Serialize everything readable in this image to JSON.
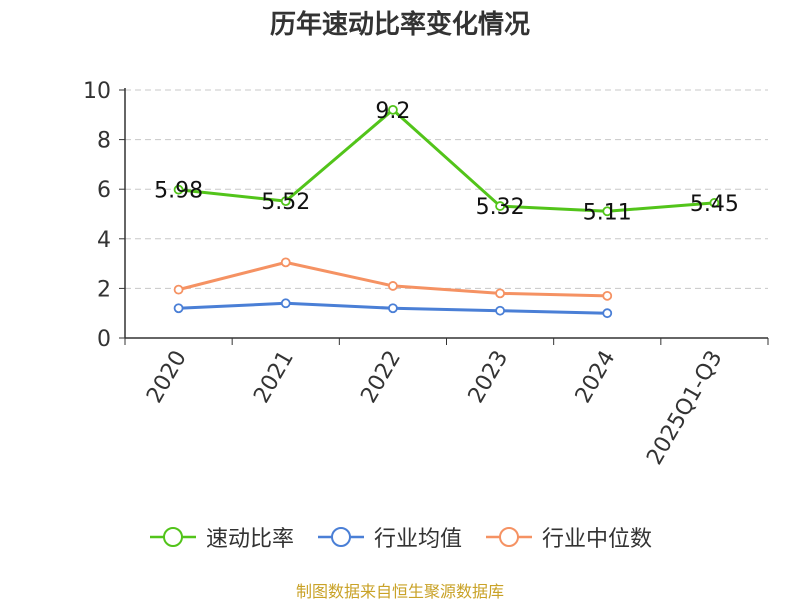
{
  "title": "历年速动比率变化情况",
  "source": "制图数据来自恒生聚源数据库",
  "chart_data": {
    "type": "line",
    "categories": [
      "2020",
      "2021",
      "2022",
      "2023",
      "2024",
      "2025Q1-Q3"
    ],
    "ylim": [
      0,
      10
    ],
    "yticks": [
      0,
      2,
      4,
      6,
      8,
      10
    ],
    "grid": true,
    "legend_position": "bottom",
    "series": [
      {
        "name": "速动比率",
        "color": "#52c41a",
        "values": [
          5.98,
          5.52,
          9.2,
          5.32,
          5.11,
          5.45
        ],
        "labels": [
          "5.98",
          "5.52",
          "9.2",
          "5.32",
          "5.11",
          "5.45"
        ],
        "show_labels": true
      },
      {
        "name": "行业均值",
        "color": "#4a7fd6",
        "values": [
          1.2,
          1.4,
          1.2,
          1.1,
          1.0,
          null
        ],
        "show_labels": false
      },
      {
        "name": "行业中位数",
        "color": "#f59263",
        "values": [
          1.95,
          3.05,
          2.1,
          1.8,
          1.7,
          null
        ],
        "show_labels": false
      }
    ]
  }
}
